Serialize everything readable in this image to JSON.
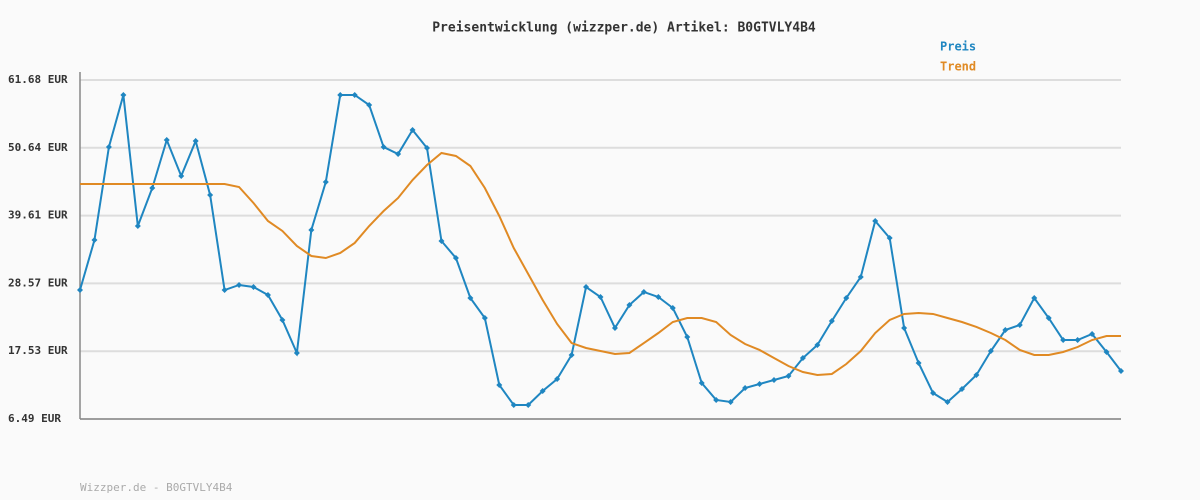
{
  "chart_data": {
    "type": "line",
    "title": "Preisentwicklung (wizzper.de) Artikel: B0GTVLY4B4",
    "footer": "Wizzper.de - B0GTVLY4B4",
    "ylim": [
      6.49,
      61.68
    ],
    "yticks": [
      {
        "value": 6.49,
        "label": "6.49 EUR"
      },
      {
        "value": 17.53,
        "label": "17.53 EUR"
      },
      {
        "value": 28.57,
        "label": "28.57 EUR"
      },
      {
        "value": 39.61,
        "label": "39.61 EUR"
      },
      {
        "value": 50.64,
        "label": "50.64 EUR"
      },
      {
        "value": 61.68,
        "label": "61.68 EUR"
      }
    ],
    "grid": true,
    "legend": "top-right",
    "series": [
      {
        "name": "Preis",
        "color": "#1f86c1",
        "markers": true,
        "values": [
          27.49,
          35.63,
          50.77,
          59.24,
          37.91,
          44.1,
          51.91,
          46.05,
          51.75,
          42.96,
          27.49,
          28.31,
          27.98,
          26.68,
          22.61,
          17.24,
          37.26,
          45.07,
          59.24,
          59.24,
          57.61,
          50.77,
          49.63,
          53.54,
          50.61,
          35.47,
          32.7,
          26.19,
          22.93,
          12.03,
          8.77,
          8.77,
          11.05,
          13.0,
          16.91,
          27.98,
          26.35,
          21.31,
          25.05,
          27.17,
          26.35,
          24.56,
          19.84,
          12.35,
          9.59,
          9.26,
          11.54,
          12.19,
          12.84,
          13.49,
          16.42,
          18.54,
          22.44,
          26.19,
          29.61,
          38.73,
          35.96,
          21.31,
          15.61,
          10.72,
          9.26,
          11.38,
          13.65,
          17.56,
          20.98,
          21.8,
          26.19,
          22.93,
          19.35,
          19.35,
          20.33,
          17.4,
          14.31
        ]
      },
      {
        "name": "Trend",
        "color": "#e08a24",
        "markers": false,
        "values": [
          44.75,
          44.75,
          44.75,
          44.75,
          44.75,
          44.75,
          44.75,
          44.75,
          44.75,
          44.75,
          44.75,
          44.26,
          41.66,
          38.73,
          37.1,
          34.66,
          33.03,
          32.7,
          33.52,
          35.15,
          37.91,
          40.35,
          42.47,
          45.4,
          47.84,
          49.8,
          49.31,
          47.68,
          44.1,
          39.54,
          34.33,
          30.1,
          25.86,
          21.96,
          18.86,
          18.05,
          17.56,
          17.07,
          17.24,
          18.86,
          20.49,
          22.28,
          22.93,
          22.93,
          22.28,
          20.17,
          18.7,
          17.73,
          16.42,
          15.12,
          14.14,
          13.65,
          13.82,
          15.44,
          17.56,
          20.49,
          22.61,
          23.59,
          23.75,
          23.59,
          22.93,
          22.28,
          21.47,
          20.49,
          19.35,
          17.73,
          16.91,
          16.91,
          17.4,
          18.21,
          19.35,
          20.0,
          20.0
        ]
      }
    ]
  }
}
